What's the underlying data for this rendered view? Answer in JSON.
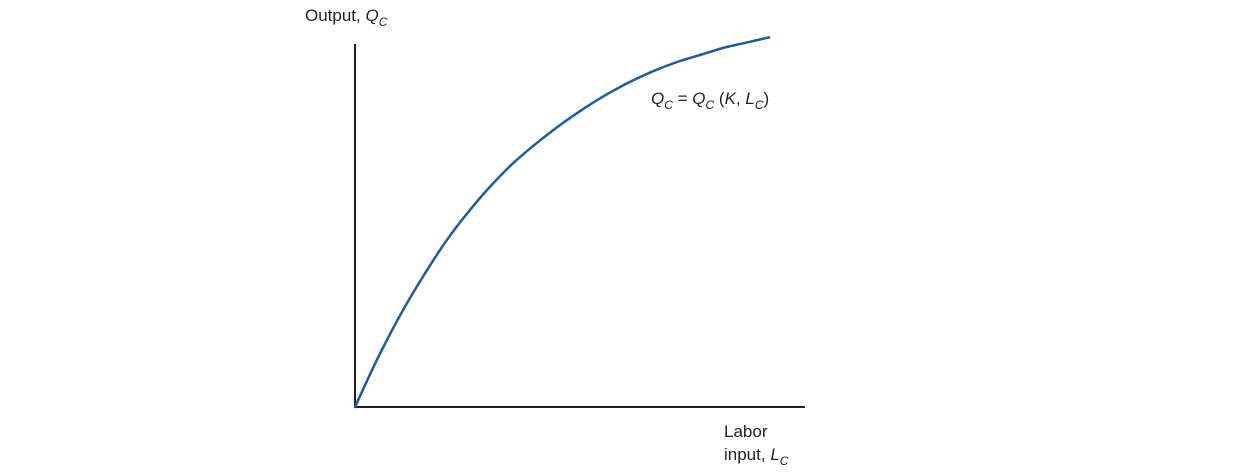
{
  "chart_data": {
    "type": "line",
    "title": "",
    "ylabel": {
      "prefix": "Output, ",
      "symbol": "Q",
      "subscript": "C"
    },
    "xlabel": {
      "line1": "Labor",
      "prefix": "input, ",
      "symbol": "L",
      "subscript": "C"
    },
    "curve_label": {
      "q1": "Q",
      "sub1": "C",
      "eq": " = ",
      "q2": "Q",
      "sub2": "C",
      "open": " (",
      "k": "K",
      "comma": ", ",
      "l": "L",
      "sub3": "C",
      "close": ")"
    },
    "ticks": "none",
    "grid": false,
    "xlim": [
      0,
      10
    ],
    "ylim": [
      0,
      10
    ],
    "series": [
      {
        "color": "#1f5a9a",
        "x": [
          0,
          0.5,
          1,
          1.5,
          2,
          2.5,
          3,
          3.5,
          4,
          4.5,
          5,
          5.5,
          6,
          6.5,
          7,
          7.5,
          8,
          8.5,
          9
        ],
        "y": [
          0,
          1.4,
          2.65,
          3.75,
          4.75,
          5.6,
          6.35,
          7.0,
          7.55,
          8.05,
          8.5,
          8.9,
          9.25,
          9.55,
          9.8,
          10.0,
          10.2,
          10.35,
          10.5
        ]
      }
    ]
  }
}
